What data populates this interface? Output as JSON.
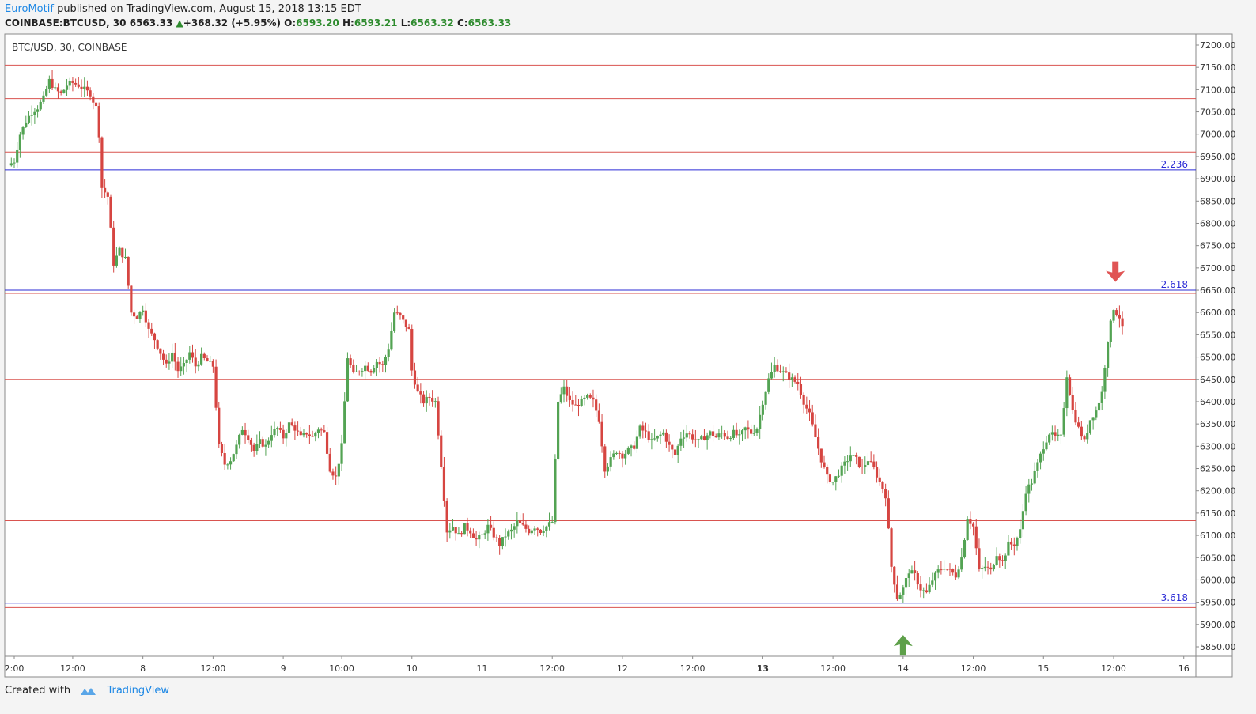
{
  "header": {
    "author": "EuroMotif",
    "published_text": "published on TradingView.com, August 15, 2018 13:15 EDT",
    "symbol": "COINBASE:BTCUSD, 30",
    "last": "6563.33",
    "change": "+368.32 (+5.95%)",
    "o_label": "O:",
    "o_value": "6593.20",
    "h_label": "H:",
    "h_value": "6593.21",
    "l_label": "L:",
    "l_value": "6563.32",
    "c_label": "C:",
    "c_value": "6563.33"
  },
  "footer": {
    "created_with": "Created with",
    "brand": "TradingView"
  },
  "colors": {
    "up": "#53a353",
    "down": "#d64541",
    "hline_red": "#d9534f",
    "hline_blue": "#2b2bd6",
    "fib_text": "#2b2bd6",
    "arrow_down": "#e05555",
    "arrow_up": "#5ea04a"
  },
  "chart_data": {
    "type": "candlestick",
    "title": "BTC/USD, 30, COINBASE",
    "ylim": [
      5825,
      7225
    ],
    "y_ticks": [
      7200,
      7150,
      7100,
      7050,
      7000,
      6950,
      6900,
      6850,
      6800,
      6750,
      6700,
      6650,
      6600,
      6550,
      6500,
      6450,
      6400,
      6350,
      6300,
      6250,
      6200,
      6150,
      6100,
      6050,
      6000,
      5950,
      5900,
      5850
    ],
    "y_tick_labels": [
      "7200.00",
      "7150.00",
      "7100.00",
      "7050.00",
      "7000.00",
      "6950.00",
      "6900.00",
      "6850.00",
      "6800.00",
      "6750.00",
      "6700.00",
      "6650.00",
      "6600.00",
      "6550.00",
      "6500.00",
      "6450.00",
      "6400.00",
      "6350.00",
      "6300.00",
      "6250.00",
      "6200.00",
      "6150.00",
      "6100.00",
      "6050.00",
      "6000.00",
      "5950.00",
      "5900.00",
      "5850.00"
    ],
    "x_range_hours": [
      -1,
      202
    ],
    "x_ticks": [
      {
        "hour": 0,
        "label": "2:00",
        "bold": false
      },
      {
        "hour": 10,
        "label": "12:00",
        "bold": false
      },
      {
        "hour": 22,
        "label": "8",
        "bold": false
      },
      {
        "hour": 34,
        "label": "12:00",
        "bold": false
      },
      {
        "hour": 46,
        "label": "9",
        "bold": false
      },
      {
        "hour": 56,
        "label": "10:00",
        "bold": false
      },
      {
        "hour": 68,
        "label": "10",
        "bold": false
      },
      {
        "hour": 80,
        "label": "11",
        "bold": false
      },
      {
        "hour": 92,
        "label": "12:00",
        "bold": false
      },
      {
        "hour": 104,
        "label": "12",
        "bold": false
      },
      {
        "hour": 116,
        "label": "12:00",
        "bold": false
      },
      {
        "hour": 128,
        "label": "13",
        "bold": true
      },
      {
        "hour": 140,
        "label": "12:00",
        "bold": false
      },
      {
        "hour": 152,
        "label": "14",
        "bold": false
      },
      {
        "hour": 164,
        "label": "12:00",
        "bold": false
      },
      {
        "hour": 176,
        "label": "15",
        "bold": false
      },
      {
        "hour": 188,
        "label": "12:00",
        "bold": false
      },
      {
        "hour": 200,
        "label": "16",
        "bold": false
      }
    ],
    "hlines": [
      {
        "price": 7155,
        "color": "red"
      },
      {
        "price": 7080,
        "color": "red"
      },
      {
        "price": 6960,
        "color": "red"
      },
      {
        "price": 6920,
        "color": "blue",
        "label": "2.236"
      },
      {
        "price": 6650,
        "color": "blue",
        "label": "2.618"
      },
      {
        "price": 6643,
        "color": "red"
      },
      {
        "price": 6450,
        "color": "red"
      },
      {
        "price": 6133,
        "color": "red"
      },
      {
        "price": 5948,
        "color": "blue",
        "label": "3.618"
      },
      {
        "price": 5938,
        "color": "red"
      }
    ],
    "arrows": [
      {
        "direction": "down",
        "hour": 188.3,
        "price": 6665
      },
      {
        "direction": "up",
        "hour": 152,
        "price": 5880
      }
    ],
    "price_path": [
      [
        -1,
        6930
      ],
      [
        0,
        6940
      ],
      [
        1,
        7000
      ],
      [
        2,
        7030
      ],
      [
        3,
        7050
      ],
      [
        4,
        7060
      ],
      [
        5,
        7080
      ],
      [
        6,
        7120
      ],
      [
        7,
        7100
      ],
      [
        8,
        7090
      ],
      [
        9,
        7110
      ],
      [
        10,
        7115
      ],
      [
        11,
        7110
      ],
      [
        12,
        7100
      ],
      [
        13,
        7090
      ],
      [
        14,
        7060
      ],
      [
        14.5,
        7000
      ],
      [
        15,
        6880
      ],
      [
        16,
        6860
      ],
      [
        17,
        6710
      ],
      [
        18,
        6740
      ],
      [
        19,
        6720
      ],
      [
        20,
        6600
      ],
      [
        21,
        6590
      ],
      [
        22,
        6610
      ],
      [
        23,
        6560
      ],
      [
        24,
        6540
      ],
      [
        25,
        6510
      ],
      [
        26,
        6480
      ],
      [
        27,
        6510
      ],
      [
        28,
        6470
      ],
      [
        29,
        6480
      ],
      [
        30,
        6510
      ],
      [
        31,
        6480
      ],
      [
        32,
        6500
      ],
      [
        33,
        6490
      ],
      [
        34,
        6480
      ],
      [
        35,
        6300
      ],
      [
        36,
        6260
      ],
      [
        37,
        6270
      ],
      [
        38,
        6300
      ],
      [
        39,
        6340
      ],
      [
        40,
        6320
      ],
      [
        41,
        6290
      ],
      [
        42,
        6310
      ],
      [
        43,
        6300
      ],
      [
        44,
        6330
      ],
      [
        45,
        6340
      ],
      [
        46,
        6320
      ],
      [
        47,
        6350
      ],
      [
        48,
        6340
      ],
      [
        49,
        6320
      ],
      [
        50,
        6330
      ],
      [
        51,
        6320
      ],
      [
        52,
        6340
      ],
      [
        53,
        6330
      ],
      [
        54,
        6250
      ],
      [
        55,
        6230
      ],
      [
        56,
        6300
      ],
      [
        57,
        6500
      ],
      [
        58,
        6460
      ],
      [
        59,
        6470
      ],
      [
        60,
        6480
      ],
      [
        61,
        6470
      ],
      [
        62,
        6490
      ],
      [
        63,
        6480
      ],
      [
        64,
        6520
      ],
      [
        65,
        6600
      ],
      [
        66,
        6590
      ],
      [
        67,
        6570
      ],
      [
        67.5,
        6560
      ],
      [
        68,
        6470
      ],
      [
        69,
        6420
      ],
      [
        70,
        6400
      ],
      [
        71,
        6410
      ],
      [
        72,
        6400
      ],
      [
        73,
        6260
      ],
      [
        74,
        6110
      ],
      [
        75,
        6120
      ],
      [
        76,
        6100
      ],
      [
        77,
        6120
      ],
      [
        78,
        6110
      ],
      [
        79,
        6090
      ],
      [
        80,
        6100
      ],
      [
        81,
        6120
      ],
      [
        82,
        6100
      ],
      [
        83,
        6080
      ],
      [
        84,
        6100
      ],
      [
        85,
        6110
      ],
      [
        86,
        6130
      ],
      [
        87,
        6120
      ],
      [
        88,
        6110
      ],
      [
        89,
        6120
      ],
      [
        90,
        6110
      ],
      [
        91,
        6120
      ],
      [
        92,
        6130
      ],
      [
        93,
        6400
      ],
      [
        94,
        6430
      ],
      [
        95,
        6400
      ],
      [
        96,
        6390
      ],
      [
        97,
        6400
      ],
      [
        98,
        6410
      ],
      [
        99,
        6400
      ],
      [
        100,
        6360
      ],
      [
        101,
        6250
      ],
      [
        102,
        6270
      ],
      [
        103,
        6290
      ],
      [
        104,
        6280
      ],
      [
        105,
        6290
      ],
      [
        106,
        6300
      ],
      [
        107,
        6340
      ],
      [
        108,
        6330
      ],
      [
        109,
        6310
      ],
      [
        110,
        6320
      ],
      [
        111,
        6330
      ],
      [
        112,
        6300
      ],
      [
        113,
        6280
      ],
      [
        114,
        6320
      ],
      [
        115,
        6330
      ],
      [
        116,
        6320
      ],
      [
        117,
        6310
      ],
      [
        118,
        6320
      ],
      [
        119,
        6330
      ],
      [
        120,
        6320
      ],
      [
        121,
        6330
      ],
      [
        122,
        6320
      ],
      [
        123,
        6330
      ],
      [
        124,
        6320
      ],
      [
        125,
        6340
      ],
      [
        126,
        6330
      ],
      [
        127,
        6340
      ],
      [
        128,
        6400
      ],
      [
        129,
        6450
      ],
      [
        130,
        6480
      ],
      [
        131,
        6470
      ],
      [
        132,
        6460
      ],
      [
        133,
        6450
      ],
      [
        134,
        6440
      ],
      [
        135,
        6400
      ],
      [
        136,
        6370
      ],
      [
        137,
        6320
      ],
      [
        138,
        6270
      ],
      [
        139,
        6230
      ],
      [
        140,
        6220
      ],
      [
        141,
        6240
      ],
      [
        142,
        6260
      ],
      [
        143,
        6280
      ],
      [
        144,
        6270
      ],
      [
        145,
        6250
      ],
      [
        146,
        6270
      ],
      [
        147,
        6250
      ],
      [
        148,
        6220
      ],
      [
        149,
        6190
      ],
      [
        150,
        6030
      ],
      [
        151,
        5960
      ],
      [
        152,
        5980
      ],
      [
        153,
        6020
      ],
      [
        154,
        6010
      ],
      [
        155,
        5980
      ],
      [
        156,
        5970
      ],
      [
        157,
        6000
      ],
      [
        158,
        6020
      ],
      [
        159,
        6030
      ],
      [
        160,
        6020
      ],
      [
        161,
        6010
      ],
      [
        162,
        6050
      ],
      [
        163,
        6140
      ],
      [
        164,
        6120
      ],
      [
        165,
        6020
      ],
      [
        166,
        6030
      ],
      [
        167,
        6020
      ],
      [
        168,
        6060
      ],
      [
        169,
        6040
      ],
      [
        170,
        6080
      ],
      [
        171,
        6080
      ],
      [
        172,
        6110
      ],
      [
        173,
        6200
      ],
      [
        174,
        6220
      ],
      [
        175,
        6260
      ],
      [
        176,
        6300
      ],
      [
        177,
        6330
      ],
      [
        178,
        6320
      ],
      [
        179,
        6320
      ],
      [
        180,
        6460
      ],
      [
        181,
        6380
      ],
      [
        182,
        6340
      ],
      [
        183,
        6310
      ],
      [
        184,
        6360
      ],
      [
        185,
        6380
      ],
      [
        186,
        6420
      ],
      [
        187,
        6540
      ],
      [
        188,
        6610
      ],
      [
        189,
        6590
      ],
      [
        189.5,
        6563
      ]
    ]
  }
}
